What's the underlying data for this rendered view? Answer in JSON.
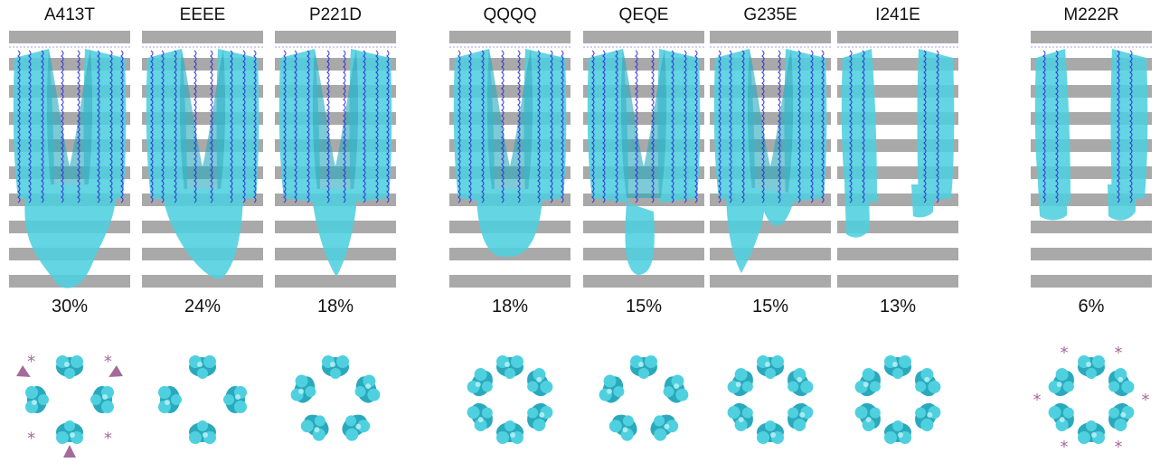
{
  "panels": [
    {
      "name": "A413T",
      "percent": "30%"
    },
    {
      "name": "EEEE",
      "percent": "24%"
    },
    {
      "name": "P221D",
      "percent": "18%"
    },
    {
      "name": "QQQQ",
      "percent": "18%"
    },
    {
      "name": "QEQE",
      "percent": "15%"
    },
    {
      "name": "G235E",
      "percent": "15%"
    },
    {
      "name": "I241E",
      "percent": "13%"
    },
    {
      "name": "M222R",
      "percent": "6%"
    }
  ],
  "colors": {
    "density": "#4fd0df",
    "density_dark": "#2aa9bd",
    "helix": "#2b2bd8",
    "stripe": "#a9a9a9",
    "marker": "#a56a9a"
  },
  "markers": {
    "A413T": {
      "asterisks": 4,
      "arrowheads": 3
    },
    "M222R": {
      "asterisks": 6,
      "arrowheads": 0
    }
  }
}
